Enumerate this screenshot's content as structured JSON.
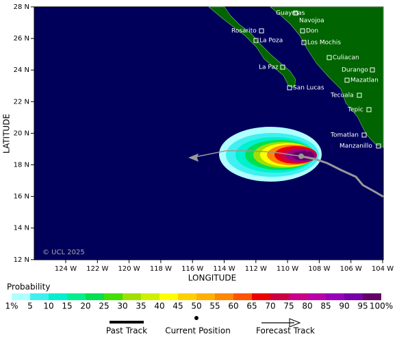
{
  "axes": {
    "x_label": "LONGITUDE",
    "y_label": "LATITUDE",
    "x_ticks": [
      "124 W",
      "122 W",
      "120 W",
      "118 W",
      "116 W",
      "114 W",
      "112 W",
      "110 W",
      "108 W",
      "106 W",
      "104 W"
    ],
    "y_ticks": [
      "28 N",
      "26 N",
      "24 N",
      "22 N",
      "20 N",
      "18 N",
      "16 N",
      "14 N",
      "12 N"
    ]
  },
  "cities": [
    "Guaymas",
    "Navojoa",
    "Rosarito",
    "La Poza",
    "Don",
    "Los Mochis",
    "Culiacan",
    "La Paz",
    "Durango",
    "Mazatlan",
    "San Lucas",
    "Tecuala",
    "Tepic",
    "Tomatlan",
    "Manzanillo"
  ],
  "copyright": "© UCL 2025",
  "legend": {
    "title": "Probability",
    "scale_labels": [
      "1%",
      "5",
      "10",
      "15",
      "20",
      "25",
      "30",
      "35",
      "40",
      "45",
      "50",
      "55",
      "60",
      "65",
      "70",
      "75",
      "80",
      "85",
      "90",
      "95",
      "100%"
    ],
    "items": [
      "Past Track",
      "Current Position",
      "Forecast Track"
    ]
  }
}
